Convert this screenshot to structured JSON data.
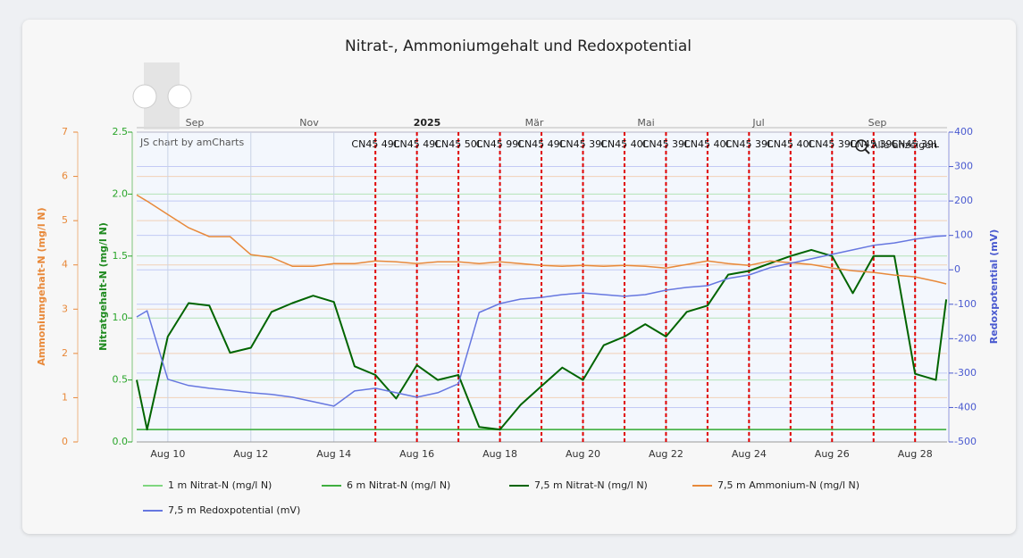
{
  "chart_data": {
    "type": "line",
    "title": "Nitrat-, Ammoniumgehalt und Redoxpotential",
    "credit": "JS chart by amCharts",
    "zoom_button": "Alle anzeigen",
    "navigator_labels": [
      "Sep",
      "Nov",
      "2025",
      "Mär",
      "Mai",
      "Jul",
      "Sep"
    ],
    "y_label": "Nitratgehalt-N (mg/l N)",
    "y2_label": "Redoxpotential (mV)",
    "y3_label": "Ammoniumgehalt-N (mg/l N)",
    "xlim": [
      9.25,
      28.77
    ],
    "xticks": [
      {
        "value": 10,
        "label": "Aug 10"
      },
      {
        "value": 12,
        "label": "Aug 12"
      },
      {
        "value": 14,
        "label": "Aug 14"
      },
      {
        "value": 16,
        "label": "Aug 16"
      },
      {
        "value": 18,
        "label": "Aug 18"
      },
      {
        "value": 20,
        "label": "Aug 20"
      },
      {
        "value": 22,
        "label": "Aug 22"
      },
      {
        "value": 24,
        "label": "Aug 24"
      },
      {
        "value": 26,
        "label": "Aug 26"
      },
      {
        "value": 28,
        "label": "Aug 28"
      }
    ],
    "ylim": [
      0,
      2.5
    ],
    "yticks": [
      {
        "value": 0,
        "label": "0.0"
      },
      0.5,
      {
        "value": 1,
        "label": "1.0"
      },
      1.5,
      {
        "value": 2,
        "label": "2.0"
      },
      2.5
    ],
    "y2lim": [
      -500,
      400
    ],
    "y2ticks": [
      -500,
      -400,
      -300,
      -200,
      -100,
      0,
      100,
      200,
      300,
      400
    ],
    "y3lim": [
      0,
      7
    ],
    "y3ticks": [
      0,
      1,
      2,
      3,
      4,
      5,
      6,
      7
    ],
    "grid": true,
    "x": [
      9.25,
      9.5,
      10,
      10.5,
      11,
      11.5,
      12,
      12.5,
      13,
      13.5,
      14,
      14.5,
      15,
      15.5,
      16,
      16.5,
      17,
      17.5,
      18,
      18.5,
      19,
      19.5,
      20,
      20.5,
      21,
      21.5,
      22,
      22.5,
      23,
      23.5,
      24,
      24.5,
      25,
      25.5,
      26,
      26.5,
      27,
      27.5,
      28,
      28.5,
      28.75
    ],
    "series": [
      {
        "name": "1 m Nitrat-N (mg/l N)",
        "color": "#7fd67f",
        "axis": "y",
        "values": [
          0.1,
          0.1,
          0.1,
          0.1,
          0.1,
          0.1,
          0.1,
          0.1,
          0.1,
          0.1,
          0.1,
          0.1,
          0.1,
          0.1,
          0.1,
          0.1,
          0.1,
          0.1,
          0.1,
          0.1,
          0.1,
          0.1,
          0.1,
          0.1,
          0.1,
          0.1,
          0.1,
          0.1,
          0.1,
          0.1,
          0.1,
          0.1,
          0.1,
          0.1,
          0.1,
          0.1,
          0.1,
          0.1,
          0.1,
          0.1,
          0.1
        ]
      },
      {
        "name": "6 m Nitrat-N (mg/l N)",
        "color": "#3fae3f",
        "axis": "y",
        "values": [
          0.1,
          0.1,
          0.1,
          0.1,
          0.1,
          0.1,
          0.1,
          0.1,
          0.1,
          0.1,
          0.1,
          0.1,
          0.1,
          0.1,
          0.1,
          0.1,
          0.1,
          0.1,
          0.1,
          0.1,
          0.1,
          0.1,
          0.1,
          0.1,
          0.1,
          0.1,
          0.1,
          0.1,
          0.1,
          0.1,
          0.1,
          0.1,
          0.1,
          0.1,
          0.1,
          0.1,
          0.1,
          0.1,
          0.1,
          0.1,
          0.1
        ]
      },
      {
        "name": "7,5 m Nitrat-N (mg/l N)",
        "color": "#006400",
        "axis": "y",
        "values": [
          0.5,
          0.1,
          0.85,
          1.12,
          1.1,
          0.72,
          0.76,
          1.05,
          1.12,
          1.18,
          1.13,
          0.61,
          0.54,
          0.35,
          0.62,
          0.5,
          0.54,
          0.12,
          0.1,
          0.3,
          0.45,
          0.6,
          0.5,
          0.78,
          0.85,
          0.95,
          0.85,
          1.05,
          1.1,
          1.35,
          1.38,
          1.44,
          1.5,
          1.55,
          1.5,
          1.2,
          1.5,
          1.5,
          0.55,
          0.5,
          1.15
        ]
      },
      {
        "name": "7,5 m Ammonium-N (mg/l N)",
        "color": "#e8893a",
        "axis": "y3",
        "values": [
          5.58,
          5.44,
          5.14,
          4.84,
          4.64,
          4.64,
          4.23,
          4.17,
          3.97,
          3.97,
          4.03,
          4.03,
          4.09,
          4.07,
          4.03,
          4.07,
          4.07,
          4.03,
          4.07,
          4.03,
          3.99,
          3.97,
          3.99,
          3.97,
          3.99,
          3.97,
          3.93,
          4.01,
          4.09,
          4.03,
          3.99,
          4.09,
          4.05,
          4.01,
          3.93,
          3.87,
          3.83,
          3.77,
          3.73,
          3.63,
          3.57
        ]
      },
      {
        "name": "7,5 m Redoxpotential (mV)",
        "color": "#6677e0",
        "axis": "y2",
        "values": [
          -137,
          -119,
          -318,
          -336,
          -344,
          -350,
          -357,
          -362,
          -370,
          -383,
          -396,
          -352,
          -344,
          -357,
          -370,
          -357,
          -331,
          -124,
          -98,
          -85,
          -80,
          -72,
          -67,
          -72,
          -77,
          -72,
          -59,
          -51,
          -46,
          -25,
          -15,
          6,
          19,
          32,
          45,
          58,
          71,
          78,
          89,
          97,
          99
        ]
      }
    ],
    "markers": {
      "color": "#e00000",
      "items": [
        {
          "x": 15,
          "label": "CN45 49L"
        },
        {
          "x": 16,
          "label": "CN45 49L"
        },
        {
          "x": 17,
          "label": "CN45 50L"
        },
        {
          "x": 18,
          "label": "CN45 99L"
        },
        {
          "x": 19,
          "label": "CN45 49L"
        },
        {
          "x": 20,
          "label": "CN45 39L"
        },
        {
          "x": 21,
          "label": "CN45 40L"
        },
        {
          "x": 22,
          "label": "CN45 39L"
        },
        {
          "x": 23,
          "label": "CN45 40L"
        },
        {
          "x": 24,
          "label": "CN45 39L"
        },
        {
          "x": 25,
          "label": "CN45 40L"
        },
        {
          "x": 26,
          "label": "CN45 39L"
        },
        {
          "x": 27,
          "label": "CN45 39L"
        },
        {
          "x": 28,
          "label": "CN45 39L"
        }
      ]
    }
  }
}
